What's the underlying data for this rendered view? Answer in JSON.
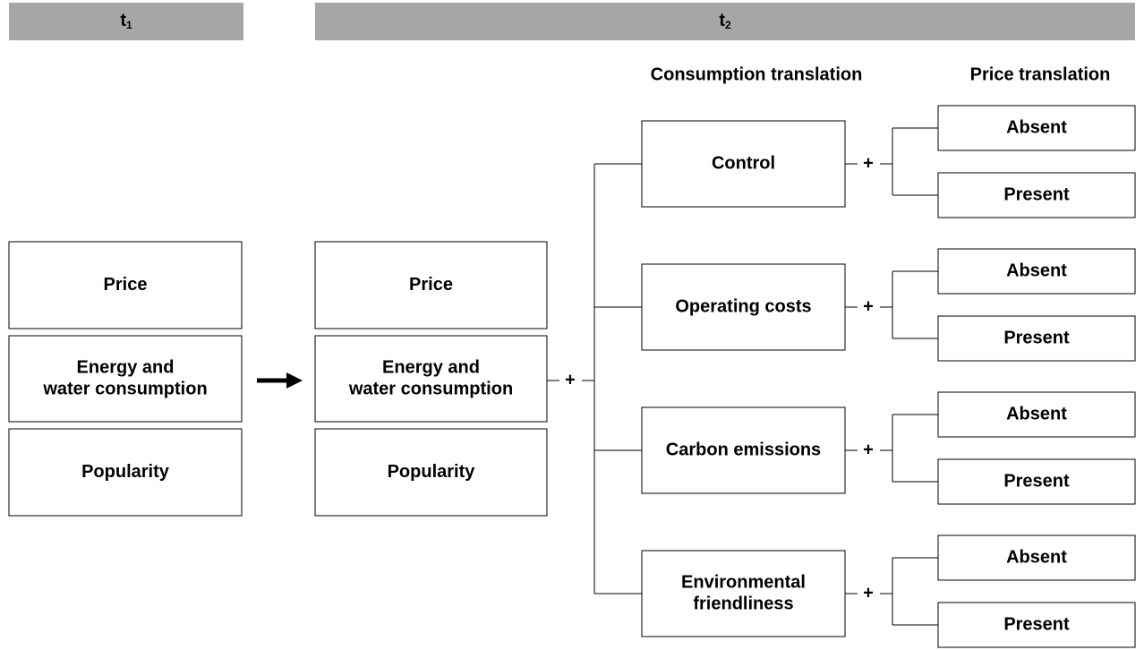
{
  "headers": [
    {
      "text": "t",
      "subscript": "1"
    },
    {
      "text": "t",
      "subscript": "2"
    }
  ],
  "column_headers": [
    "Consumption translation",
    "Price translation"
  ],
  "t1_attributes": [
    [
      "Price"
    ],
    [
      "Energy and",
      "water consumption"
    ],
    [
      "Popularity"
    ]
  ],
  "t2_attributes": [
    [
      "Price"
    ],
    [
      "Energy and",
      "water consumption"
    ],
    [
      "Popularity"
    ]
  ],
  "operator": "+",
  "consumption_translations": [
    {
      "label": [
        "Control"
      ],
      "price_translation": [
        "Absent",
        "Present"
      ]
    },
    {
      "label": [
        "Operating costs"
      ],
      "price_translation": [
        "Absent",
        "Present"
      ]
    },
    {
      "label": [
        "Carbon emissions"
      ],
      "price_translation": [
        "Absent",
        "Present"
      ]
    },
    {
      "label": [
        "Environmental",
        "friendliness"
      ],
      "price_translation": [
        "Absent",
        "Present"
      ]
    }
  ]
}
